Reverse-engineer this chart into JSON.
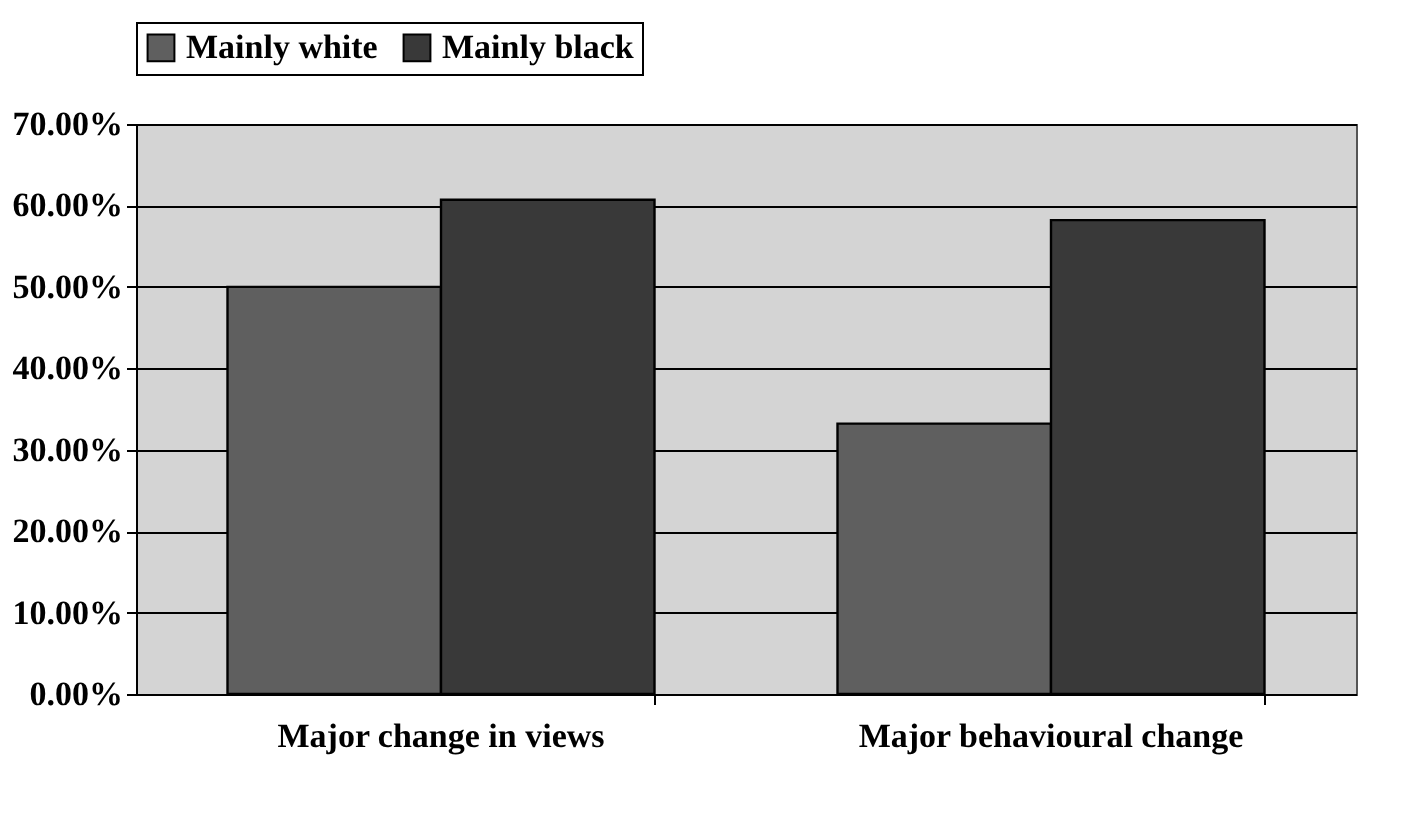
{
  "chart_data": {
    "type": "bar",
    "categories": [
      "Major change in views",
      "Major behavioural change"
    ],
    "series": [
      {
        "name": "Mainly white",
        "color": "#5f5f5f",
        "values": [
          0.5,
          0.332
        ]
      },
      {
        "name": "Mainly black",
        "color": "#393939",
        "values": [
          0.607,
          0.582
        ]
      }
    ],
    "ylim": [
      0,
      0.7
    ],
    "yticks": [
      {
        "value": 0,
        "label": "0.00%"
      },
      {
        "value": 0.1,
        "label": "10.00%"
      },
      {
        "value": 0.2,
        "label": "20.00%"
      },
      {
        "value": 0.3,
        "label": "30.00%"
      },
      {
        "value": 0.4,
        "label": "40.00%"
      },
      {
        "value": 0.5,
        "label": "50.00%"
      },
      {
        "value": 0.6,
        "label": "60.00%"
      },
      {
        "value": 0.7,
        "label": "70.00%"
      }
    ],
    "grid": "y",
    "legend": "top"
  }
}
